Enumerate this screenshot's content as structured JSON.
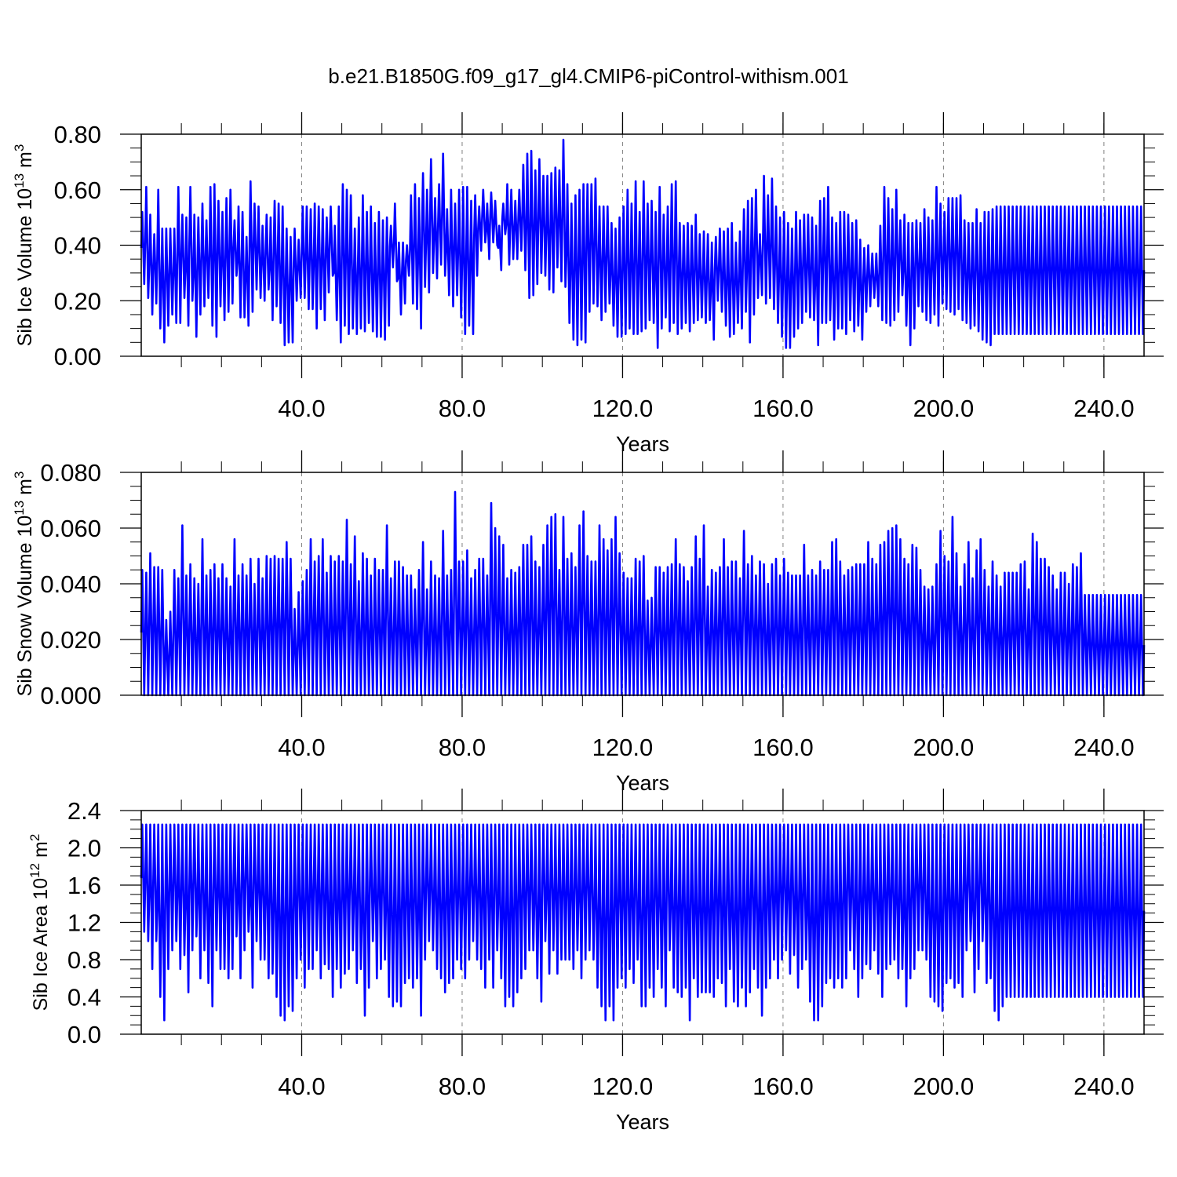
{
  "title": "b.e21.B1850G.f09_g17_gl4.CMIP6-piControl-withism.001",
  "colors": {
    "series": "#0000ff",
    "axes": "#000000",
    "grid": "#808080"
  },
  "chart_data": [
    {
      "type": "line",
      "ylabel": "Sib Ice Volume",
      "yunit": {
        "base": "10",
        "exp": "13",
        "unit": "m",
        "unit_exp": "3"
      },
      "xlabel": "Years",
      "xlim": [
        0,
        250
      ],
      "ylim": [
        0,
        0.8
      ],
      "x_ticks": [
        40,
        80,
        120,
        160,
        200,
        240
      ],
      "x_tick_labels": [
        "40.0",
        "80.0",
        "120.0",
        "160.0",
        "200.0",
        "240.0"
      ],
      "y_ticks": [
        0,
        0.2,
        0.4,
        0.6,
        0.8
      ],
      "y_tick_labels": [
        "0.00",
        "0.20",
        "0.40",
        "0.60",
        "0.80"
      ],
      "grid": "vertical dashed at labeled x ticks",
      "series": [
        {
          "max": [
            0.52,
            0.61,
            0.51,
            0.44,
            0.6,
            0.46,
            0.46,
            0.46,
            0.46,
            0.61,
            0.51,
            0.5,
            0.61,
            0.51,
            0.5,
            0.55,
            0.49,
            0.61,
            0.62,
            0.56,
            0.52,
            0.57,
            0.6,
            0.49,
            0.54,
            0.52,
            0.43,
            0.63,
            0.55,
            0.54,
            0.47,
            0.51,
            0.5,
            0.56,
            0.55,
            0.54,
            0.46,
            0.43,
            0.46,
            0.42,
            0.54,
            0.54,
            0.53,
            0.55,
            0.54,
            0.53,
            0.5,
            0.54,
            0.47,
            0.54,
            0.62,
            0.6,
            0.58,
            0.46,
            0.5,
            0.58,
            0.52,
            0.54,
            0.48,
            0.52,
            0.49,
            0.5,
            0.47,
            0.55,
            0.41,
            0.41,
            0.4,
            0.58,
            0.62,
            0.57,
            0.66,
            0.6,
            0.71,
            0.57,
            0.62,
            0.73,
            0.53,
            0.6,
            0.55,
            0.6,
            0.61,
            0.61,
            0.56,
            0.58,
            0.54,
            0.6,
            0.55,
            0.59,
            0.56,
            0.47,
            0.55,
            0.62,
            0.6,
            0.56,
            0.6,
            0.69,
            0.73,
            0.74,
            0.67,
            0.71,
            0.65,
            0.65,
            0.66,
            0.68,
            0.67,
            0.78,
            0.62,
            0.55,
            0.58,
            0.6,
            0.62,
            0.62,
            0.62,
            0.64,
            0.54,
            0.54,
            0.54,
            0.48,
            0.46,
            0.5,
            0.54,
            0.6,
            0.55,
            0.63,
            0.52,
            0.63,
            0.55,
            0.56,
            0.52,
            0.61,
            0.51,
            0.54,
            0.62,
            0.63,
            0.48,
            0.47,
            0.48,
            0.47,
            0.51,
            0.44,
            0.45,
            0.44,
            0.41,
            0.43,
            0.46,
            0.45,
            0.46,
            0.48,
            0.41,
            0.45,
            0.53,
            0.56,
            0.57,
            0.6,
            0.44,
            0.65,
            0.58,
            0.64,
            0.54,
            0.5,
            0.52,
            0.48,
            0.46,
            0.52,
            0.49,
            0.51,
            0.51,
            0.5,
            0.47,
            0.56,
            0.57,
            0.61,
            0.5,
            0.48,
            0.52,
            0.52,
            0.51,
            0.48,
            0.49,
            0.42,
            0.39,
            0.4,
            0.37,
            0.37,
            0.47,
            0.61,
            0.57,
            0.53,
            0.6,
            0.49,
            0.51,
            0.48,
            0.48,
            0.49,
            0.48,
            0.53,
            0.5,
            0.49,
            0.61,
            0.55,
            0.52,
            0.57,
            0.57,
            0.57,
            0.58,
            0.49,
            0.48,
            0.48,
            0.53,
            0.48,
            0.52,
            0.52,
            0.53,
            0.54
          ],
          "min": [
            0.26,
            0.21,
            0.15,
            0.19,
            0.1,
            0.05,
            0.11,
            0.15,
            0.12,
            0.12,
            0.21,
            0.11,
            0.2,
            0.07,
            0.15,
            0.18,
            0.21,
            0.11,
            0.07,
            0.18,
            0.13,
            0.16,
            0.19,
            0.29,
            0.14,
            0.14,
            0.11,
            0.16,
            0.24,
            0.21,
            0.2,
            0.24,
            0.13,
            0.18,
            0.12,
            0.04,
            0.05,
            0.05,
            0.2,
            0.21,
            0.21,
            0.17,
            0.17,
            0.1,
            0.17,
            0.13,
            0.23,
            0.29,
            0.13,
            0.05,
            0.11,
            0.08,
            0.1,
            0.08,
            0.1,
            0.09,
            0.12,
            0.09,
            0.07,
            0.07,
            0.06,
            0.11,
            0.32,
            0.27,
            0.15,
            0.19,
            0.29,
            0.19,
            0.17,
            0.1,
            0.25,
            0.23,
            0.3,
            0.28,
            0.33,
            0.29,
            0.22,
            0.18,
            0.22,
            0.14,
            0.08,
            0.11,
            0.08,
            0.29,
            0.38,
            0.41,
            0.35,
            0.41,
            0.4,
            0.31,
            0.44,
            0.33,
            0.35,
            0.35,
            0.38,
            0.31,
            0.21,
            0.22,
            0.26,
            0.3,
            0.29,
            0.24,
            0.23,
            0.32,
            0.27,
            0.25,
            0.12,
            0.06,
            0.04,
            0.06,
            0.05,
            0.16,
            0.19,
            0.18,
            0.13,
            0.16,
            0.19,
            0.11,
            0.07,
            0.07,
            0.08,
            0.1,
            0.08,
            0.08,
            0.09,
            0.1,
            0.13,
            0.12,
            0.03,
            0.1,
            0.14,
            0.09,
            0.12,
            0.08,
            0.1,
            0.12,
            0.09,
            0.12,
            0.13,
            0.14,
            0.12,
            0.13,
            0.06,
            0.2,
            0.16,
            0.11,
            0.07,
            0.08,
            0.12,
            0.1,
            0.16,
            0.05,
            0.15,
            0.21,
            0.22,
            0.19,
            0.21,
            0.17,
            0.12,
            0.07,
            0.03,
            0.03,
            0.07,
            0.1,
            0.12,
            0.16,
            0.14,
            0.13,
            0.04,
            0.12,
            0.12,
            0.13,
            0.06,
            0.1,
            0.1,
            0.08,
            0.13,
            0.09,
            0.11,
            0.06,
            0.16,
            0.18,
            0.21,
            0.18,
            0.13,
            0.12,
            0.11,
            0.13,
            0.16,
            0.22,
            0.11,
            0.04,
            0.1,
            0.18,
            0.16,
            0.13,
            0.12,
            0.15,
            0.11,
            0.19,
            0.17,
            0.16,
            0.15,
            0.17,
            0.13,
            0.12,
            0.1,
            0.11,
            0.09,
            0.06,
            0.05,
            0.04,
            0.08
          ]
        }
      ]
    },
    {
      "type": "line",
      "ylabel": "Sib Snow Volume",
      "yunit": {
        "base": "10",
        "exp": "13",
        "unit": "m",
        "unit_exp": "3"
      },
      "xlabel": "Years",
      "xlim": [
        0,
        250
      ],
      "ylim": [
        0,
        0.08
      ],
      "x_ticks": [
        40,
        80,
        120,
        160,
        200,
        240
      ],
      "x_tick_labels": [
        "40.0",
        "80.0",
        "120.0",
        "160.0",
        "200.0",
        "240.0"
      ],
      "y_ticks": [
        0,
        0.02,
        0.04,
        0.06,
        0.08
      ],
      "y_tick_labels": [
        "0.000",
        "0.020",
        "0.040",
        "0.060",
        "0.080"
      ],
      "grid": "vertical dashed at labeled x ticks",
      "series": [
        {
          "max": [
            0.045,
            0.044,
            0.051,
            0.046,
            0.046,
            0.045,
            0.027,
            0.03,
            0.045,
            0.042,
            0.061,
            0.043,
            0.047,
            0.042,
            0.04,
            0.056,
            0.043,
            0.045,
            0.047,
            0.042,
            0.047,
            0.042,
            0.039,
            0.056,
            0.043,
            0.047,
            0.043,
            0.049,
            0.04,
            0.049,
            0.042,
            0.05,
            0.049,
            0.05,
            0.049,
            0.049,
            0.055,
            0.049,
            0.031,
            0.037,
            0.041,
            0.045,
            0.056,
            0.048,
            0.05,
            0.056,
            0.044,
            0.05,
            0.048,
            0.05,
            0.048,
            0.063,
            0.047,
            0.057,
            0.041,
            0.051,
            0.049,
            0.043,
            0.049,
            0.045,
            0.045,
            0.061,
            0.042,
            0.048,
            0.048,
            0.046,
            0.043,
            0.043,
            0.038,
            0.045,
            0.055,
            0.038,
            0.048,
            0.043,
            0.042,
            0.059,
            0.043,
            0.045,
            0.073,
            0.048,
            0.048,
            0.052,
            0.042,
            0.045,
            0.049,
            0.049,
            0.043,
            0.069,
            0.06,
            0.057,
            0.054,
            0.042,
            0.045,
            0.044,
            0.046,
            0.054,
            0.054,
            0.057,
            0.048,
            0.046,
            0.054,
            0.061,
            0.064,
            0.065,
            0.045,
            0.064,
            0.049,
            0.051,
            0.046,
            0.061,
            0.066,
            0.05,
            0.048,
            0.048,
            0.061,
            0.056,
            0.052,
            0.056,
            0.064,
            0.051,
            0.044,
            0.042,
            0.042,
            0.049,
            0.048,
            0.05,
            0.034,
            0.035,
            0.046,
            0.046,
            0.044,
            0.046,
            0.047,
            0.056,
            0.047,
            0.046,
            0.041,
            0.046,
            0.057,
            0.049,
            0.061,
            0.039,
            0.045,
            0.044,
            0.046,
            0.056,
            0.046,
            0.048,
            0.048,
            0.042,
            0.059,
            0.047,
            0.05,
            0.043,
            0.048,
            0.047,
            0.04,
            0.047,
            0.049,
            0.043,
            0.049,
            0.044,
            0.043,
            0.043,
            0.043,
            0.054,
            0.043,
            0.045,
            0.043,
            0.048,
            0.045,
            0.045,
            0.055,
            0.056,
            0.048,
            0.043,
            0.045,
            0.046,
            0.047,
            0.047,
            0.047,
            0.055,
            0.049,
            0.047,
            0.054,
            0.055,
            0.059,
            0.06,
            0.061,
            0.056,
            0.049,
            0.047,
            0.054,
            0.053,
            0.045,
            0.039,
            0.038,
            0.039,
            0.047,
            0.059,
            0.05,
            0.048,
            0.064,
            0.051,
            0.039,
            0.047,
            0.055,
            0.042,
            0.052,
            0.056,
            0.045,
            0.039,
            0.048,
            0.043,
            0.039,
            0.044,
            0.044,
            0.044,
            0.044,
            0.047,
            0.048,
            0.038,
            0.058,
            0.055,
            0.049,
            0.049,
            0.046,
            0.043,
            0.038,
            0.044,
            0.044,
            0.04,
            0.047,
            0.046,
            0.051,
            0.036
          ],
          "min": [
            0.0
          ]
        }
      ]
    },
    {
      "type": "line",
      "ylabel": "Sib Ice Area",
      "yunit": {
        "base": "10",
        "exp": "12",
        "unit": "m",
        "unit_exp": "2"
      },
      "xlabel": "Years",
      "xlim": [
        0,
        250
      ],
      "ylim": [
        0,
        2.4
      ],
      "x_ticks": [
        40,
        80,
        120,
        160,
        200,
        240
      ],
      "x_tick_labels": [
        "40.0",
        "80.0",
        "120.0",
        "160.0",
        "200.0",
        "240.0"
      ],
      "y_ticks": [
        0,
        0.4,
        0.8,
        1.2,
        1.6,
        2.0,
        2.4
      ],
      "y_tick_labels": [
        "0.0",
        "0.4",
        "0.8",
        "1.2",
        "1.6",
        "2.0",
        "2.4"
      ],
      "grid": "vertical dashed at labeled x ticks",
      "series": [
        {
          "max": [
            2.25
          ],
          "min": [
            1.1,
            1.0,
            0.7,
            1.0,
            0.4,
            0.15,
            0.7,
            0.9,
            1.0,
            0.7,
            0.85,
            0.45,
            0.9,
            1.05,
            0.6,
            0.9,
            0.55,
            0.3,
            0.9,
            0.7,
            0.7,
            0.6,
            0.7,
            1.05,
            0.6,
            0.9,
            1.1,
            0.5,
            1.0,
            0.8,
            0.8,
            0.6,
            0.65,
            0.4,
            0.2,
            0.15,
            0.3,
            0.25,
            0.6,
            0.8,
            0.5,
            0.7,
            0.7,
            0.9,
            0.6,
            0.75,
            0.7,
            0.4,
            0.7,
            0.5,
            0.65,
            0.7,
            0.9,
            0.55,
            0.7,
            0.2,
            0.5,
            1.0,
            0.6,
            0.7,
            0.8,
            0.4,
            0.3,
            0.35,
            0.3,
            0.55,
            0.6,
            0.5,
            0.6,
            0.2,
            0.8,
            1.0,
            0.9,
            0.7,
            0.6,
            0.45,
            0.55,
            0.6,
            0.8,
            0.7,
            0.6,
            0.8,
            1.0,
            0.8,
            0.7,
            0.5,
            0.8,
            0.5,
            0.9,
            0.6,
            0.3,
            0.4,
            0.3,
            0.45,
            0.6,
            0.7,
            0.9,
            0.9,
            0.6,
            0.35,
            1.0,
            0.65,
            0.9,
            0.65,
            0.8,
            0.8,
            0.8,
            0.7,
            0.9,
            0.6,
            0.8,
            0.9,
            0.8,
            0.5,
            0.3,
            0.15,
            0.3,
            0.15,
            0.5,
            0.6,
            0.5,
            0.7,
            0.55,
            0.8,
            0.3,
            0.3,
            0.5,
            0.4,
            0.7,
            0.5,
            0.3,
            0.9,
            0.5,
            0.45,
            0.4,
            0.5,
            0.15,
            0.6,
            0.4,
            0.45,
            0.45,
            0.45,
            0.4,
            0.6,
            0.55,
            0.3,
            0.7,
            0.35,
            0.3,
            0.5,
            0.3,
            0.45,
            0.7,
            0.5,
            0.2,
            0.5,
            0.6,
            0.8,
            0.6,
            0.8,
            0.9,
            0.65,
            0.85,
            0.5,
            0.7,
            0.8,
            0.35,
            0.15,
            0.15,
            0.3,
            0.55,
            0.6,
            0.5,
            0.6,
            0.5,
            0.6,
            0.9,
            0.7,
            0.4,
            0.6,
            0.75,
            0.7,
            0.9,
            0.65,
            0.4,
            0.7,
            0.75,
            0.8,
            0.6,
            0.7,
            0.3,
            0.6,
            0.7,
            0.9,
            0.9,
            0.8,
            0.4,
            0.35,
            0.3,
            0.25,
            0.55,
            0.6,
            0.5,
            0.55,
            0.4,
            0.9,
            1.0,
            0.45,
            0.7,
            1.0,
            0.55,
            0.6,
            0.25,
            0.15,
            0.3,
            0.4
          ]
        }
      ]
    }
  ]
}
